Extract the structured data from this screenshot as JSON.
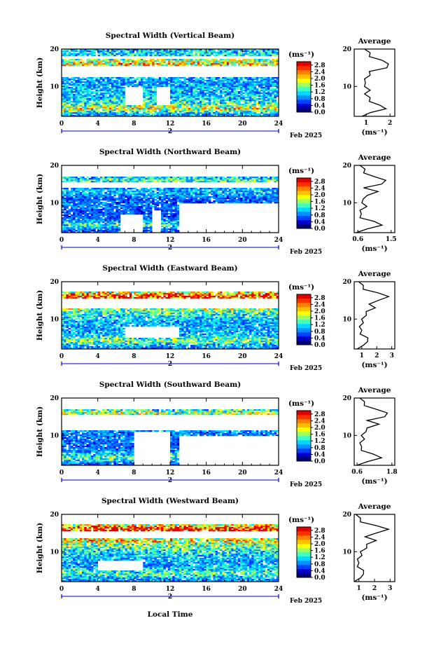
{
  "figure": {
    "x_label": "Local Time",
    "date_label": "Feb 2025",
    "day_marker": "2",
    "height_label": "Height (km)",
    "unit_label": "(ms⁻¹)",
    "avg_title": "Average",
    "avg_unit": "(ms⁻¹)"
  },
  "colorbar": {
    "ticks": [
      "0.0",
      "0.4",
      "0.8",
      "1.2",
      "1.6",
      "2.0",
      "2.4",
      "2.8"
    ],
    "colors": [
      "#000070",
      "#0000c8",
      "#0040ff",
      "#0090ff",
      "#00d8ff",
      "#40ffc0",
      "#a0ff60",
      "#ffff00",
      "#ffc000",
      "#ff8000",
      "#ff3000",
      "#e00000"
    ]
  },
  "colors": {
    "missing": "#ffffff",
    "axis": "#000000",
    "marker": "#0000cc"
  },
  "chart_data": [
    {
      "type": "heatmap",
      "title": "Spectral Width (Vertical Beam)",
      "xlabel": "Local Time",
      "ylabel": "Height (km)",
      "xlim": [
        0,
        24
      ],
      "ylim": [
        2,
        20
      ],
      "x_ticks": [
        0,
        4,
        8,
        12,
        16,
        20,
        24
      ],
      "y_ticks": [
        10,
        20
      ],
      "clim": [
        0,
        3.0
      ],
      "profile": [
        [
          2,
          0.9
        ],
        [
          3,
          1.1
        ],
        [
          4,
          1.9
        ],
        [
          5,
          1.5
        ],
        [
          6,
          1.2
        ],
        [
          7,
          1.1
        ],
        [
          8,
          1.0
        ],
        [
          9,
          1.1
        ],
        [
          10,
          1.0
        ],
        [
          11,
          0.9
        ],
        [
          12,
          1.0
        ],
        [
          13,
          1.1
        ],
        [
          14,
          1.2
        ],
        [
          15,
          1.8
        ],
        [
          16,
          2.0
        ],
        [
          17,
          1.6
        ],
        [
          18,
          1.2
        ],
        [
          19,
          1.1
        ],
        [
          20,
          1.0
        ]
      ],
      "gaps": [
        [
          7,
          9,
          5,
          10
        ],
        [
          10.5,
          12,
          5,
          10
        ],
        [
          0,
          24,
          12.5,
          15.5
        ],
        [
          0,
          24,
          17.5,
          18
        ]
      ],
      "avg": {
        "title": "Average",
        "xlabel": "(ms⁻¹)",
        "xlim": [
          0.5,
          2.2
        ],
        "x_ticks": [
          "1",
          "2"
        ],
        "height": [
          2,
          3,
          4,
          5,
          6,
          7,
          8,
          9,
          10,
          11,
          12,
          13,
          14,
          15,
          16,
          17,
          18,
          19,
          20
        ],
        "value": [
          0.9,
          1.1,
          1.9,
          1.5,
          1.2,
          1.1,
          1.0,
          1.1,
          1.0,
          0.9,
          1.0,
          1.1,
          1.2,
          1.8,
          2.0,
          1.6,
          1.2,
          1.1,
          1.0
        ]
      }
    },
    {
      "type": "heatmap",
      "title": "Spectral Width (Northward Beam)",
      "xlabel": "Local Time",
      "ylabel": "Height (km)",
      "xlim": [
        0,
        24
      ],
      "ylim": [
        2,
        20
      ],
      "x_ticks": [
        0,
        4,
        8,
        12,
        16,
        20,
        24
      ],
      "y_ticks": [
        10,
        20
      ],
      "clim": [
        0,
        3.0
      ],
      "profile": [
        [
          2,
          0.6
        ],
        [
          3,
          0.8
        ],
        [
          4,
          1.3
        ],
        [
          5,
          1.0
        ],
        [
          6,
          0.7
        ],
        [
          7,
          0.65
        ],
        [
          8,
          0.7
        ],
        [
          9,
          0.8
        ],
        [
          10,
          0.75
        ],
        [
          11,
          0.7
        ],
        [
          12,
          0.9
        ],
        [
          13,
          1.1
        ],
        [
          14,
          0.8
        ],
        [
          15,
          1.2
        ],
        [
          16,
          1.4
        ],
        [
          17,
          1.0
        ],
        [
          18,
          0.8
        ],
        [
          19,
          0.75
        ],
        [
          20,
          0.7
        ]
      ],
      "gaps": [
        [
          6.5,
          9,
          2,
          7
        ],
        [
          10,
          11,
          2,
          8
        ],
        [
          13,
          24,
          2,
          10
        ],
        [
          0,
          24,
          14,
          15.5
        ],
        [
          0,
          24,
          17,
          20
        ]
      ],
      "avg": {
        "title": "Average",
        "xlabel": "(ms⁻¹)",
        "xlim": [
          0.5,
          1.6
        ],
        "x_ticks": [
          "0.6",
          "1.5"
        ],
        "height": [
          2,
          3,
          4,
          5,
          6,
          7,
          8,
          9,
          10,
          11,
          12,
          13,
          14,
          15,
          16,
          17,
          18,
          19,
          20
        ],
        "value": [
          0.6,
          0.8,
          1.3,
          1.0,
          0.7,
          0.65,
          0.7,
          0.8,
          0.75,
          0.7,
          0.9,
          1.1,
          0.8,
          1.2,
          1.4,
          1.0,
          0.8,
          0.75,
          0.7
        ]
      }
    },
    {
      "type": "heatmap",
      "title": "Spectral Width (Eastward Beam)",
      "xlabel": "Local Time",
      "ylabel": "Height (km)",
      "xlim": [
        0,
        24
      ],
      "ylim": [
        2,
        20
      ],
      "x_ticks": [
        0,
        4,
        8,
        12,
        16,
        20,
        24
      ],
      "y_ticks": [
        10,
        20
      ],
      "clim": [
        0,
        3.0
      ],
      "profile": [
        [
          2,
          0.8
        ],
        [
          3,
          1.0
        ],
        [
          4,
          1.5
        ],
        [
          5,
          1.3
        ],
        [
          6,
          1.0
        ],
        [
          7,
          0.9
        ],
        [
          8,
          0.95
        ],
        [
          9,
          1.0
        ],
        [
          10,
          1.1
        ],
        [
          11,
          1.2
        ],
        [
          12,
          1.4
        ],
        [
          13,
          1.8
        ],
        [
          14,
          1.6
        ],
        [
          15,
          2.0
        ],
        [
          16,
          2.9
        ],
        [
          17,
          2.0
        ],
        [
          18,
          1.2
        ],
        [
          19,
          1.0
        ],
        [
          20,
          0.9
        ]
      ],
      "gaps": [
        [
          7,
          13,
          5,
          8
        ],
        [
          0,
          24,
          13,
          15.5
        ],
        [
          0,
          24,
          17.5,
          20
        ]
      ],
      "avg": {
        "title": "Average",
        "xlabel": "(ms⁻¹)",
        "xlim": [
          0.5,
          3.2
        ],
        "x_ticks": [
          "1",
          "2",
          "3"
        ],
        "height": [
          2,
          3,
          4,
          5,
          6,
          7,
          8,
          9,
          10,
          11,
          12,
          13,
          14,
          15,
          16,
          17,
          18,
          19,
          20
        ],
        "value": [
          0.8,
          1.0,
          1.5,
          1.3,
          1.0,
          0.9,
          0.95,
          1.0,
          1.1,
          1.2,
          1.4,
          1.8,
          1.6,
          2.0,
          2.9,
          2.0,
          1.2,
          1.0,
          0.9
        ]
      }
    },
    {
      "type": "heatmap",
      "title": "Spectral Width (Southward Beam)",
      "xlabel": "Local Time",
      "ylabel": "Height (km)",
      "xlim": [
        0,
        24
      ],
      "ylim": [
        2,
        20
      ],
      "x_ticks": [
        0,
        4,
        8,
        12,
        16,
        20,
        24
      ],
      "y_ticks": [
        10,
        20
      ],
      "clim": [
        0,
        3.0
      ],
      "profile": [
        [
          2,
          0.65
        ],
        [
          3,
          0.9
        ],
        [
          4,
          1.5
        ],
        [
          5,
          1.1
        ],
        [
          6,
          0.8
        ],
        [
          7,
          0.7
        ],
        [
          8,
          0.75
        ],
        [
          9,
          0.8
        ],
        [
          10,
          0.8
        ],
        [
          11,
          0.85
        ],
        [
          12,
          1.0
        ],
        [
          13,
          1.3
        ],
        [
          14,
          1.0
        ],
        [
          15,
          1.5
        ],
        [
          16,
          1.7
        ],
        [
          17,
          1.2
        ],
        [
          18,
          0.9
        ],
        [
          19,
          0.8
        ],
        [
          20,
          0.75
        ]
      ],
      "gaps": [
        [
          8,
          12,
          2,
          11
        ],
        [
          13,
          24,
          2,
          10
        ],
        [
          0,
          24,
          11.5,
          15.5
        ],
        [
          0,
          24,
          17,
          20
        ]
      ],
      "avg": {
        "title": "Average",
        "xlabel": "(ms⁻¹)",
        "xlim": [
          0.5,
          1.9
        ],
        "x_ticks": [
          "0.6",
          "1.8"
        ],
        "height": [
          2,
          3,
          4,
          5,
          6,
          7,
          8,
          9,
          10,
          11,
          12,
          13,
          14,
          15,
          16,
          17,
          18,
          19,
          20
        ],
        "value": [
          0.65,
          0.9,
          1.5,
          1.1,
          0.8,
          0.7,
          0.75,
          0.8,
          0.8,
          0.85,
          1.0,
          1.3,
          1.0,
          1.5,
          1.7,
          1.2,
          0.9,
          0.8,
          0.75
        ]
      }
    },
    {
      "type": "heatmap",
      "title": "Spectral Width (Westward Beam)",
      "xlabel": "Local Time",
      "ylabel": "Height (km)",
      "xlim": [
        0,
        24
      ],
      "ylim": [
        2,
        20
      ],
      "x_ticks": [
        0,
        4,
        8,
        12,
        16,
        20,
        24
      ],
      "y_ticks": [
        10,
        20
      ],
      "clim": [
        0,
        3.0
      ],
      "profile": [
        [
          2,
          0.8
        ],
        [
          3,
          1.0
        ],
        [
          4,
          1.4
        ],
        [
          5,
          1.2
        ],
        [
          6,
          1.0
        ],
        [
          7,
          0.9
        ],
        [
          8,
          1.0
        ],
        [
          9,
          1.1
        ],
        [
          10,
          1.2
        ],
        [
          11,
          1.4
        ],
        [
          12,
          1.6
        ],
        [
          13,
          2.0
        ],
        [
          14,
          1.5
        ],
        [
          15,
          2.0
        ],
        [
          16,
          3.0
        ],
        [
          17,
          2.0
        ],
        [
          18,
          1.2
        ],
        [
          19,
          1.0
        ],
        [
          20,
          0.9
        ]
      ],
      "gaps": [
        [
          4,
          9,
          5,
          7.5
        ],
        [
          0,
          24,
          13.5,
          15.5
        ],
        [
          0,
          24,
          17.5,
          20
        ]
      ],
      "avg": {
        "title": "Average",
        "xlabel": "(ms⁻¹)",
        "xlim": [
          0.7,
          3.3
        ],
        "x_ticks": [
          "1",
          "2",
          "3"
        ],
        "height": [
          2,
          3,
          4,
          5,
          6,
          7,
          8,
          9,
          10,
          11,
          12,
          13,
          14,
          15,
          16,
          17,
          18,
          19,
          20
        ],
        "value": [
          0.8,
          1.0,
          1.4,
          1.2,
          1.0,
          0.9,
          1.0,
          1.1,
          1.2,
          1.4,
          1.6,
          2.0,
          1.5,
          2.0,
          3.0,
          2.0,
          1.2,
          1.0,
          0.9
        ]
      }
    }
  ]
}
